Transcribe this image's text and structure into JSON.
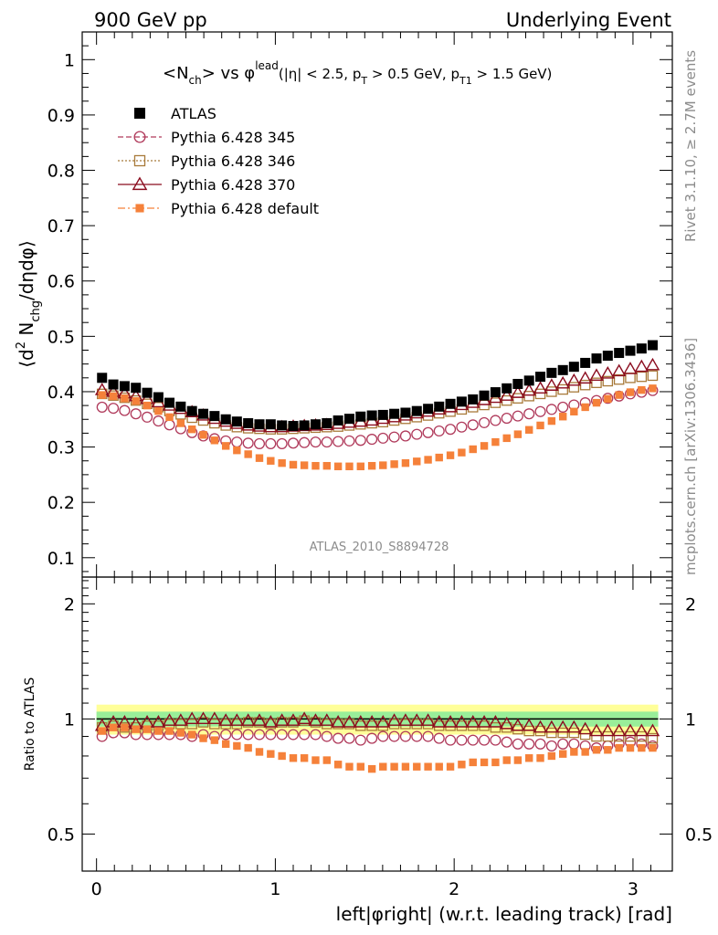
{
  "header": {
    "left": "900 GeV pp",
    "right": "Underlying Event"
  },
  "side_labels": {
    "rivet": "Rivet 3.1.10, ≥ 2.7M events",
    "mcplots": "mcplots.cern.ch [arXiv:1306.3436]"
  },
  "chart_data": [
    {
      "type": "scatter",
      "title_parts": {
        "a": "<N",
        "a_sub": "ch",
        "b": "> vs φ",
        "b_sup": "lead",
        "c": "(|η| < 2.5, p",
        "c_sub": "T",
        "d": " > 0.5 GeV, p",
        "d_sub": "T1",
        "e": " > 1.5 GeV)"
      },
      "ylabel_parts": {
        "a": "⟨d",
        "a_sup": "2",
        "b": " N",
        "b_sub": "chg",
        "c": "/dηdφ⟩"
      },
      "watermark": "ATLAS_2010_S8894728",
      "xlim": [
        -0.08,
        3.22
      ],
      "ylim": [
        0.065,
        1.05
      ],
      "yticks": [
        0.1,
        0.2,
        0.3,
        0.4,
        0.5,
        0.6,
        0.7,
        0.8,
        0.9,
        1
      ],
      "ytick_labels": [
        "0.1",
        "0.2",
        "0.3",
        "0.4",
        "0.5",
        "0.6",
        "0.7",
        "0.8",
        "0.9",
        "1"
      ],
      "legend_position": "top-left",
      "x": [
        0.031,
        0.094,
        0.157,
        0.22,
        0.283,
        0.346,
        0.408,
        0.471,
        0.534,
        0.597,
        0.66,
        0.723,
        0.785,
        0.848,
        0.911,
        0.974,
        1.037,
        1.1,
        1.162,
        1.225,
        1.288,
        1.351,
        1.414,
        1.477,
        1.54,
        1.602,
        1.665,
        1.728,
        1.791,
        1.854,
        1.916,
        1.979,
        2.042,
        2.105,
        2.168,
        2.231,
        2.294,
        2.356,
        2.419,
        2.482,
        2.545,
        2.608,
        2.67,
        2.733,
        2.796,
        2.859,
        2.922,
        2.985,
        3.048,
        3.11
      ],
      "series": [
        {
          "name": "ATLAS",
          "color": "#000000",
          "marker": "filled-square",
          "values": [
            0.425,
            0.413,
            0.41,
            0.407,
            0.398,
            0.39,
            0.38,
            0.373,
            0.365,
            0.36,
            0.356,
            0.35,
            0.346,
            0.343,
            0.341,
            0.341,
            0.339,
            0.338,
            0.339,
            0.341,
            0.343,
            0.348,
            0.351,
            0.355,
            0.357,
            0.358,
            0.36,
            0.362,
            0.365,
            0.369,
            0.373,
            0.378,
            0.382,
            0.386,
            0.393,
            0.399,
            0.406,
            0.414,
            0.42,
            0.427,
            0.434,
            0.439,
            0.445,
            0.452,
            0.46,
            0.465,
            0.47,
            0.474,
            0.478,
            0.484
          ]
        },
        {
          "name": "Pythia 6.428 345",
          "color": "#b03a5b",
          "marker": "open-circle",
          "values": [
            0.372,
            0.37,
            0.366,
            0.36,
            0.354,
            0.347,
            0.34,
            0.333,
            0.326,
            0.32,
            0.315,
            0.311,
            0.309,
            0.307,
            0.306,
            0.306,
            0.306,
            0.307,
            0.308,
            0.309,
            0.309,
            0.31,
            0.311,
            0.312,
            0.314,
            0.316,
            0.318,
            0.32,
            0.323,
            0.326,
            0.329,
            0.332,
            0.336,
            0.34,
            0.344,
            0.348,
            0.352,
            0.356,
            0.36,
            0.364,
            0.368,
            0.372,
            0.376,
            0.38,
            0.384,
            0.388,
            0.392,
            0.396,
            0.399,
            0.402
          ]
        },
        {
          "name": "Pythia 6.428 346",
          "color": "#a87a3a",
          "marker": "open-square",
          "values": [
            0.396,
            0.393,
            0.389,
            0.384,
            0.378,
            0.372,
            0.365,
            0.359,
            0.353,
            0.348,
            0.343,
            0.339,
            0.336,
            0.334,
            0.333,
            0.332,
            0.332,
            0.333,
            0.334,
            0.335,
            0.336,
            0.337,
            0.339,
            0.341,
            0.343,
            0.345,
            0.348,
            0.351,
            0.354,
            0.357,
            0.361,
            0.364,
            0.368,
            0.372,
            0.376,
            0.38,
            0.384,
            0.388,
            0.392,
            0.396,
            0.4,
            0.404,
            0.408,
            0.412,
            0.416,
            0.419,
            0.422,
            0.425,
            0.427,
            0.429
          ]
        },
        {
          "name": "Pythia 6.428 370",
          "color": "#8b0c1f",
          "marker": "open-triangle",
          "values": [
            0.403,
            0.4,
            0.397,
            0.392,
            0.387,
            0.381,
            0.375,
            0.369,
            0.363,
            0.357,
            0.351,
            0.346,
            0.342,
            0.339,
            0.337,
            0.336,
            0.336,
            0.337,
            0.338,
            0.339,
            0.34,
            0.342,
            0.344,
            0.346,
            0.348,
            0.351,
            0.354,
            0.357,
            0.361,
            0.364,
            0.368,
            0.372,
            0.376,
            0.38,
            0.385,
            0.389,
            0.393,
            0.398,
            0.402,
            0.406,
            0.411,
            0.415,
            0.42,
            0.424,
            0.429,
            0.433,
            0.437,
            0.441,
            0.445,
            0.448
          ]
        },
        {
          "name": "Pythia 6.428 default",
          "color": "#f5813a",
          "marker": "small-filled-square",
          "values": [
            0.394,
            0.392,
            0.388,
            0.383,
            0.375,
            0.365,
            0.354,
            0.343,
            0.332,
            0.322,
            0.312,
            0.302,
            0.294,
            0.287,
            0.28,
            0.275,
            0.271,
            0.268,
            0.267,
            0.266,
            0.266,
            0.265,
            0.265,
            0.265,
            0.266,
            0.267,
            0.269,
            0.271,
            0.274,
            0.277,
            0.281,
            0.285,
            0.29,
            0.296,
            0.302,
            0.309,
            0.316,
            0.323,
            0.331,
            0.339,
            0.347,
            0.355,
            0.364,
            0.372,
            0.38,
            0.387,
            0.394,
            0.399,
            0.403,
            0.406
          ]
        }
      ]
    },
    {
      "type": "scatter",
      "ylabel": "Ratio to ATLAS",
      "xlabel": "left|φright| (w.r.t. leading track) [rad]",
      "xlim": [
        -0.08,
        3.22
      ],
      "xticks": [
        0,
        1,
        2,
        3
      ],
      "xtick_labels": [
        "0",
        "1",
        "2",
        "3"
      ],
      "ylim": [
        0.4,
        2.35
      ],
      "log_scale_y": true,
      "yticks": [
        0.5,
        1,
        2
      ],
      "ytick_labels": [
        "0.5",
        "1",
        "2"
      ],
      "bands": [
        {
          "name": "yellow",
          "color": "#ffff99",
          "lo": 0.91,
          "hi": 1.09
        },
        {
          "name": "green",
          "color": "#99ee99",
          "lo": 0.955,
          "hi": 1.045
        }
      ],
      "x": [
        0.031,
        0.094,
        0.157,
        0.22,
        0.283,
        0.346,
        0.408,
        0.471,
        0.534,
        0.597,
        0.66,
        0.723,
        0.785,
        0.848,
        0.911,
        0.974,
        1.037,
        1.1,
        1.162,
        1.225,
        1.288,
        1.351,
        1.414,
        1.477,
        1.54,
        1.602,
        1.665,
        1.728,
        1.791,
        1.854,
        1.916,
        1.979,
        2.042,
        2.105,
        2.168,
        2.231,
        2.294,
        2.356,
        2.419,
        2.482,
        2.545,
        2.608,
        2.67,
        2.733,
        2.796,
        2.859,
        2.922,
        2.985,
        3.048,
        3.11
      ],
      "series": [
        {
          "name": "Pythia 6.428 345",
          "color": "#b03a5b",
          "marker": "open-circle",
          "values": [
            0.9,
            0.92,
            0.92,
            0.91,
            0.91,
            0.91,
            0.91,
            0.91,
            0.9,
            0.91,
            0.9,
            0.91,
            0.91,
            0.91,
            0.91,
            0.91,
            0.91,
            0.91,
            0.91,
            0.91,
            0.9,
            0.89,
            0.89,
            0.88,
            0.89,
            0.9,
            0.9,
            0.9,
            0.9,
            0.9,
            0.89,
            0.88,
            0.88,
            0.88,
            0.88,
            0.88,
            0.87,
            0.86,
            0.86,
            0.86,
            0.85,
            0.86,
            0.86,
            0.85,
            0.84,
            0.85,
            0.86,
            0.87,
            0.86,
            0.85
          ]
        },
        {
          "name": "Pythia 6.428 346",
          "color": "#a87a3a",
          "marker": "open-square",
          "values": [
            0.95,
            0.96,
            0.95,
            0.95,
            0.96,
            0.96,
            0.97,
            0.97,
            0.97,
            0.98,
            0.97,
            0.97,
            0.97,
            0.98,
            0.98,
            0.97,
            0.98,
            0.98,
            0.99,
            0.98,
            0.97,
            0.97,
            0.97,
            0.96,
            0.96,
            0.96,
            0.97,
            0.97,
            0.97,
            0.97,
            0.96,
            0.96,
            0.96,
            0.96,
            0.96,
            0.95,
            0.95,
            0.94,
            0.93,
            0.93,
            0.92,
            0.92,
            0.92,
            0.91,
            0.9,
            0.9,
            0.9,
            0.9,
            0.9,
            0.89
          ]
        },
        {
          "name": "Pythia 6.428 370",
          "color": "#8b0c1f",
          "marker": "open-triangle",
          "values": [
            0.96,
            0.98,
            0.98,
            0.97,
            0.98,
            0.98,
            0.99,
            0.99,
            1.0,
            1.0,
            1.0,
            0.99,
            0.99,
            0.99,
            0.99,
            0.98,
            0.99,
            0.99,
            1.0,
            0.99,
            0.99,
            0.98,
            0.98,
            0.98,
            0.98,
            0.98,
            0.99,
            0.99,
            0.99,
            0.99,
            0.98,
            0.98,
            0.98,
            0.98,
            0.98,
            0.98,
            0.97,
            0.96,
            0.96,
            0.95,
            0.95,
            0.95,
            0.95,
            0.94,
            0.93,
            0.93,
            0.93,
            0.93,
            0.93,
            0.93
          ]
        },
        {
          "name": "Pythia 6.428 default",
          "color": "#f5813a",
          "marker": "small-filled-square",
          "values": [
            0.93,
            0.95,
            0.95,
            0.94,
            0.94,
            0.93,
            0.93,
            0.92,
            0.91,
            0.89,
            0.88,
            0.86,
            0.85,
            0.84,
            0.82,
            0.81,
            0.8,
            0.79,
            0.79,
            0.78,
            0.78,
            0.76,
            0.75,
            0.75,
            0.74,
            0.75,
            0.75,
            0.75,
            0.75,
            0.75,
            0.75,
            0.75,
            0.76,
            0.77,
            0.77,
            0.77,
            0.78,
            0.78,
            0.79,
            0.79,
            0.8,
            0.81,
            0.82,
            0.82,
            0.83,
            0.83,
            0.84,
            0.84,
            0.84,
            0.84
          ]
        }
      ]
    }
  ]
}
